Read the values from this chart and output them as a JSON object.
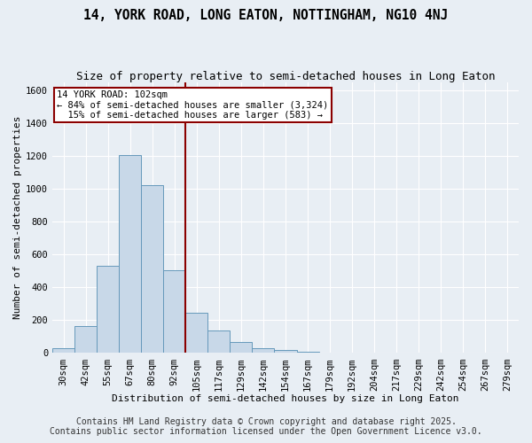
{
  "title": "14, YORK ROAD, LONG EATON, NOTTINGHAM, NG10 4NJ",
  "subtitle": "Size of property relative to semi-detached houses in Long Eaton",
  "xlabel": "Distribution of semi-detached houses by size in Long Eaton",
  "ylabel": "Number of semi-detached properties",
  "bin_labels": [
    "30sqm",
    "42sqm",
    "55sqm",
    "67sqm",
    "80sqm",
    "92sqm",
    "105sqm",
    "117sqm",
    "129sqm",
    "142sqm",
    "154sqm",
    "167sqm",
    "179sqm",
    "192sqm",
    "204sqm",
    "217sqm",
    "229sqm",
    "242sqm",
    "254sqm",
    "267sqm",
    "279sqm"
  ],
  "bar_values": [
    30,
    163,
    530,
    1207,
    1025,
    505,
    243,
    140,
    65,
    30,
    20,
    10,
    0,
    0,
    0,
    0,
    0,
    0,
    0,
    0,
    0
  ],
  "bar_color": "#c8d8e8",
  "bar_edgecolor": "#6699bb",
  "vline_color": "#8b0000",
  "vline_x": 5.5,
  "annotation_line1": "14 YORK ROAD: 102sqm",
  "annotation_line2": "← 84% of semi-detached houses are smaller (3,324)",
  "annotation_line3": "  15% of semi-detached houses are larger (583) →",
  "annotation_box_color": "#8b0000",
  "ylim": [
    0,
    1650
  ],
  "yticks": [
    0,
    200,
    400,
    600,
    800,
    1000,
    1200,
    1400,
    1600
  ],
  "footer1": "Contains HM Land Registry data © Crown copyright and database right 2025.",
  "footer2": "Contains public sector information licensed under the Open Government Licence v3.0.",
  "background_color": "#e8eef4",
  "plot_background": "#e8eef4",
  "grid_color": "#ffffff",
  "title_fontsize": 10.5,
  "subtitle_fontsize": 9,
  "axis_fontsize": 8,
  "tick_fontsize": 7.5,
  "footer_fontsize": 7
}
